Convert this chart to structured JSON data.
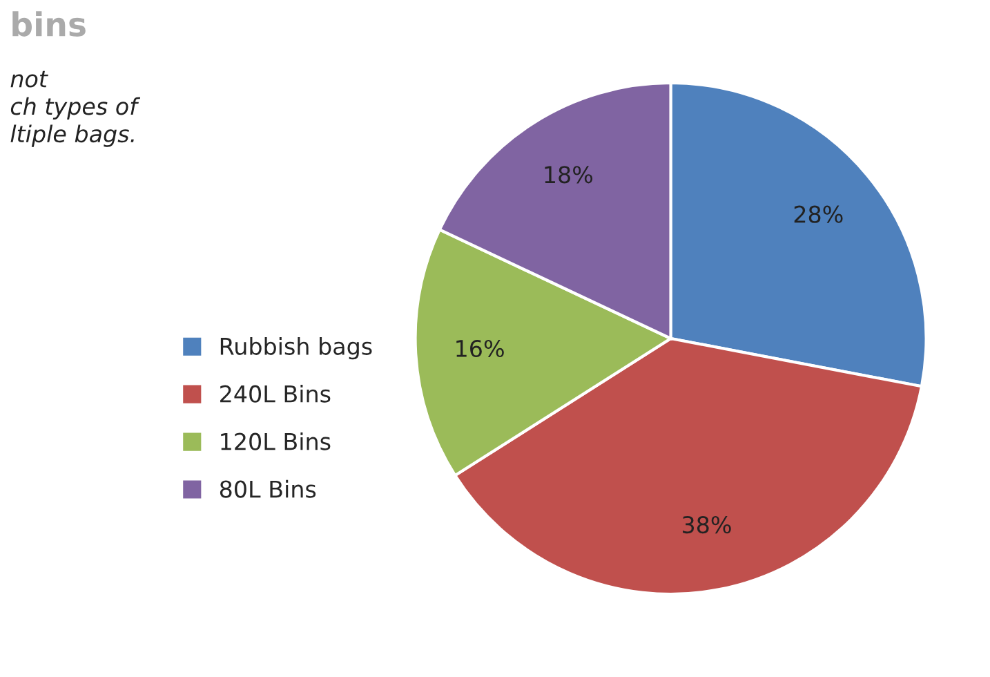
{
  "chart_data": {
    "type": "pie",
    "title": "bins",
    "annotations": [
      "not\nch types of\nltiple bags."
    ],
    "categories": [
      "Rubbish bags",
      "240L Bins",
      "120L Bins",
      "80L Bins"
    ],
    "values": [
      28,
      38,
      16,
      18
    ],
    "value_labels": [
      "28%",
      "38%",
      "16%",
      "18%"
    ],
    "colors": [
      "#4f81bd",
      "#c0504d",
      "#9bbb59",
      "#8064a2"
    ],
    "legend": "left"
  }
}
